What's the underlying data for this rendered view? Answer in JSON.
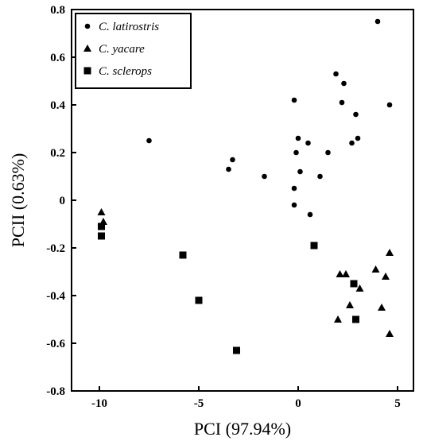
{
  "chart_data": {
    "type": "scatter",
    "xlabel": "PCI (97.94%)",
    "ylabel": "PCII (0.63%)",
    "xlim": [
      -11.4,
      5.8
    ],
    "ylim": [
      -0.8,
      0.8
    ],
    "xticks": [
      -10,
      -5,
      0,
      5
    ],
    "yticks": [
      0.8,
      0.6,
      0.4,
      0.2,
      0,
      -0.2,
      -0.4,
      -0.6,
      -0.8
    ],
    "xtick_labels": [
      "-10",
      "-5",
      "0",
      "5"
    ],
    "ytick_labels": [
      "0.8",
      "0.6",
      "0.4",
      "0.2",
      "0",
      "-0.2",
      "-0.4",
      "-0.6",
      "-0.8"
    ],
    "legend_position": "top-left",
    "grid": false,
    "series": [
      {
        "name": "C. latirostris",
        "marker": "circle",
        "points": [
          [
            4.0,
            0.75
          ],
          [
            1.9,
            0.53
          ],
          [
            2.3,
            0.49
          ],
          [
            -0.2,
            0.42
          ],
          [
            2.2,
            0.41
          ],
          [
            4.6,
            0.4
          ],
          [
            2.9,
            0.36
          ],
          [
            -7.5,
            0.25
          ],
          [
            0.0,
            0.26
          ],
          [
            3.0,
            0.26
          ],
          [
            0.5,
            0.24
          ],
          [
            2.7,
            0.24
          ],
          [
            1.5,
            0.2
          ],
          [
            -0.1,
            0.2
          ],
          [
            -3.3,
            0.17
          ],
          [
            -3.5,
            0.13
          ],
          [
            0.1,
            0.12
          ],
          [
            1.1,
            0.1
          ],
          [
            -1.7,
            0.1
          ],
          [
            -0.2,
            0.05
          ],
          [
            -0.2,
            -0.02
          ],
          [
            0.6,
            -0.06
          ]
        ]
      },
      {
        "name": "C. yacare",
        "marker": "triangle",
        "points": [
          [
            -9.9,
            -0.05
          ],
          [
            -9.8,
            -0.09
          ],
          [
            4.6,
            -0.22
          ],
          [
            3.9,
            -0.29
          ],
          [
            2.1,
            -0.31
          ],
          [
            2.4,
            -0.31
          ],
          [
            4.4,
            -0.32
          ],
          [
            3.1,
            -0.37
          ],
          [
            2.6,
            -0.44
          ],
          [
            4.2,
            -0.45
          ],
          [
            2.0,
            -0.5
          ],
          [
            4.6,
            -0.56
          ]
        ]
      },
      {
        "name": "C. sclerops",
        "marker": "square",
        "points": [
          [
            -9.9,
            -0.11
          ],
          [
            -9.9,
            -0.15
          ],
          [
            0.8,
            -0.19
          ],
          [
            -5.8,
            -0.23
          ],
          [
            2.8,
            -0.35
          ],
          [
            -5.0,
            -0.42
          ],
          [
            2.9,
            -0.5
          ],
          [
            -3.1,
            -0.63
          ]
        ]
      }
    ]
  }
}
